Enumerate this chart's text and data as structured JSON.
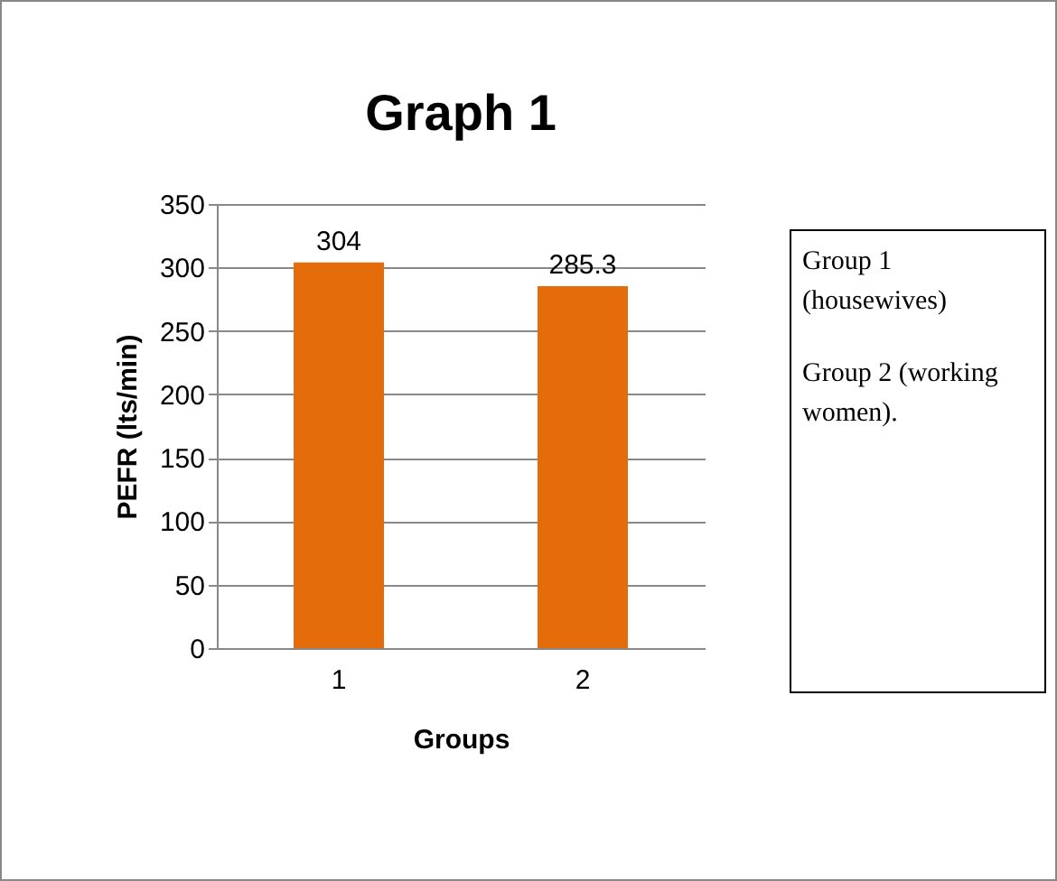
{
  "chart_data": {
    "type": "bar",
    "title": "Graph 1",
    "xlabel": "Groups",
    "ylabel": "PEFR (lts/min)",
    "categories": [
      "1",
      "2"
    ],
    "values": [
      304,
      285.3
    ],
    "color": "#e46c0a",
    "ylim": [
      0,
      350
    ],
    "yticks": [
      0,
      50,
      100,
      150,
      200,
      250,
      300,
      350
    ],
    "grid": "y",
    "data_labels": true,
    "annotations": [
      "Group 1 (housewives)",
      "Group 2 (working women)."
    ]
  }
}
